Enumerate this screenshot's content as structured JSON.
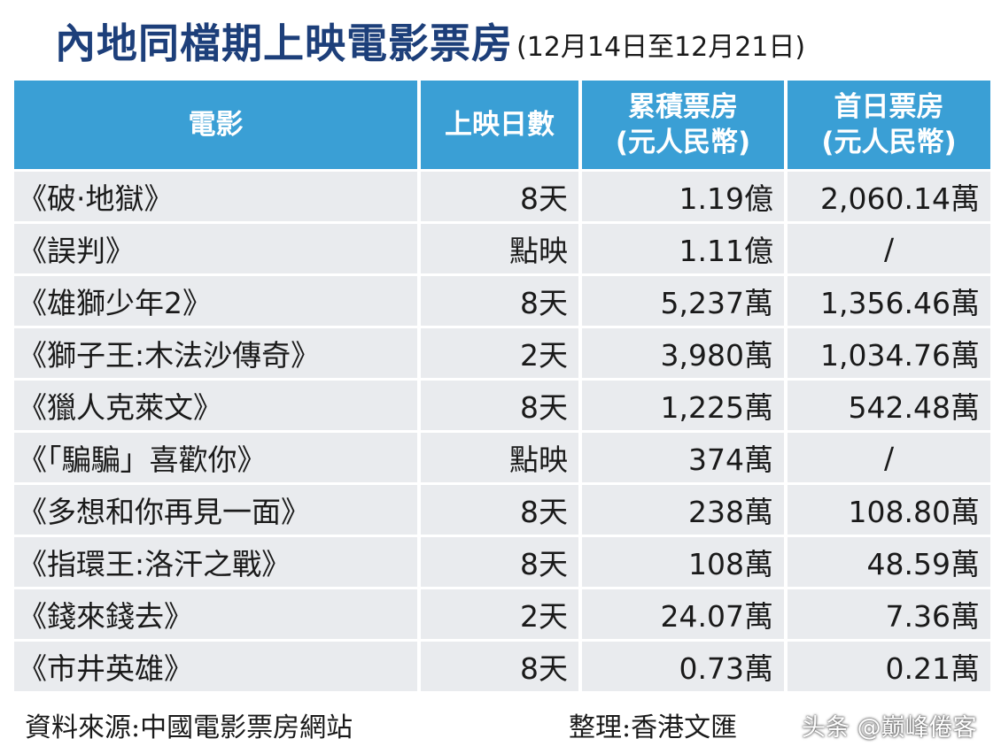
{
  "title": {
    "main": "內地同檔期上映電影票房",
    "sub": "(12月14日至12月21日)"
  },
  "table": {
    "headers": [
      {
        "line1": "電影",
        "line2": ""
      },
      {
        "line1": "上映日數",
        "line2": ""
      },
      {
        "line1": "累積票房",
        "line2": "(元人民幣)"
      },
      {
        "line1": "首日票房",
        "line2": "(元人民幣)"
      }
    ],
    "rows": [
      {
        "film": "《破·地獄》",
        "days": "8天",
        "total": "1.19億",
        "first": "2,060.14萬"
      },
      {
        "film": "《誤判》",
        "days": "點映",
        "total": "1.11億",
        "first": "/"
      },
      {
        "film": "《雄獅少年2》",
        "days": "8天",
        "total": "5,237萬",
        "first": "1,356.46萬"
      },
      {
        "film": "《獅子王:木法沙傳奇》",
        "days": "2天",
        "total": "3,980萬",
        "first": "1,034.76萬"
      },
      {
        "film": "《獵人克萊文》",
        "days": "8天",
        "total": "1,225萬",
        "first": "542.48萬"
      },
      {
        "film": "《「騙騙」喜歡你》",
        "days": "點映",
        "total": "374萬",
        "first": "/"
      },
      {
        "film": "《多想和你再見一面》",
        "days": "8天",
        "total": "238萬",
        "first": "108.80萬"
      },
      {
        "film": "《指環王:洛汗之戰》",
        "days": "8天",
        "total": "108萬",
        "first": "48.59萬"
      },
      {
        "film": "《錢來錢去》",
        "days": "2天",
        "total": "24.07萬",
        "first": "7.36萬"
      },
      {
        "film": "《市井英雄》",
        "days": "8天",
        "total": "0.73萬",
        "first": "0.21萬"
      }
    ]
  },
  "footer": {
    "source": "資料來源:中國電影票房網站",
    "compiled": "整理:香港文匯"
  },
  "watermark": "头条 @巅峰倦客"
}
